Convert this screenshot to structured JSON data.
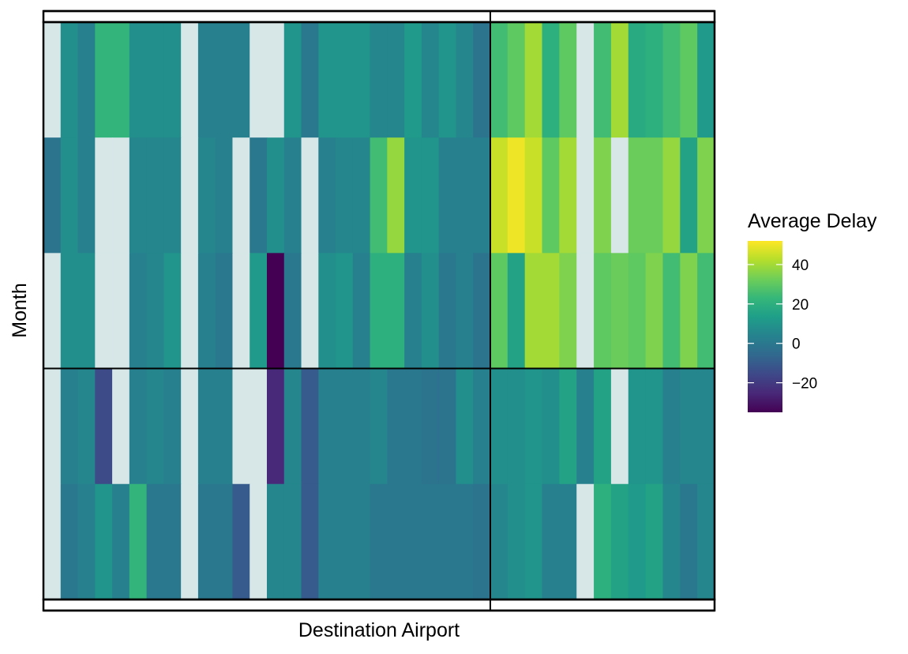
{
  "chart_data": {
    "type": "heatmap",
    "xlabel": "Destination Airport",
    "ylabel": "Month",
    "legend": {
      "title": "Average Delay",
      "placement": "right",
      "ticks": [
        40,
        20,
        0,
        -20
      ],
      "tick_labels": [
        "40",
        "20",
        "0",
        "−20"
      ],
      "range": [
        -35,
        52
      ]
    },
    "colors": {
      "na": "#d7e7e8",
      "viridis": [
        "#440154",
        "#482878",
        "#3e4989",
        "#31688e",
        "#26828e",
        "#1f9e89",
        "#35b779",
        "#6ece58",
        "#b5de2b",
        "#fde725"
      ]
    },
    "facet_rows": 2,
    "facet_cols": 2,
    "facet_columns": 2,
    "rows_per_facet": [
      3,
      2
    ],
    "cols_per_facet": [
      26,
      13
    ],
    "panel_rows": [
      [
        [
          null,
          8,
          3,
          22,
          22,
          8,
          8,
          8,
          null,
          3,
          3,
          3,
          null,
          null,
          10,
          0,
          10,
          10,
          10,
          5,
          5,
          12,
          5,
          10,
          5,
          -2,
          25,
          30,
          40,
          20,
          30,
          null,
          25,
          40,
          18,
          20,
          25,
          30,
          12
        ],
        [
          -2,
          8,
          3,
          null,
          null,
          5,
          5,
          5,
          null,
          5,
          3,
          null,
          0,
          8,
          3,
          null,
          3,
          5,
          5,
          25,
          38,
          10,
          10,
          3,
          3,
          3,
          45,
          50,
          45,
          30,
          40,
          null,
          35,
          null,
          32,
          32,
          38,
          15,
          35
        ],
        [
          null,
          8,
          8,
          null,
          null,
          3,
          5,
          10,
          null,
          3,
          0,
          null,
          12,
          -35,
          0,
          null,
          8,
          10,
          3,
          20,
          20,
          3,
          8,
          0,
          3,
          -2,
          30,
          15,
          40,
          40,
          35,
          null,
          30,
          32,
          30,
          35,
          25,
          35,
          25
        ]
      ],
      [
        [
          null,
          3,
          5,
          -15,
          null,
          3,
          5,
          3,
          null,
          3,
          3,
          null,
          null,
          -25,
          5,
          -10,
          3,
          3,
          3,
          5,
          0,
          0,
          -2,
          -2,
          8,
          3,
          8,
          8,
          10,
          8,
          15,
          3,
          15,
          null,
          10,
          10,
          3,
          5,
          5
        ],
        [
          null,
          0,
          3,
          10,
          3,
          22,
          0,
          0,
          null,
          0,
          0,
          -10,
          null,
          5,
          5,
          -10,
          3,
          3,
          3,
          0,
          0,
          0,
          0,
          0,
          0,
          -2,
          5,
          8,
          10,
          3,
          3,
          null,
          20,
          15,
          12,
          15,
          5,
          0,
          5
        ]
      ]
    ]
  }
}
